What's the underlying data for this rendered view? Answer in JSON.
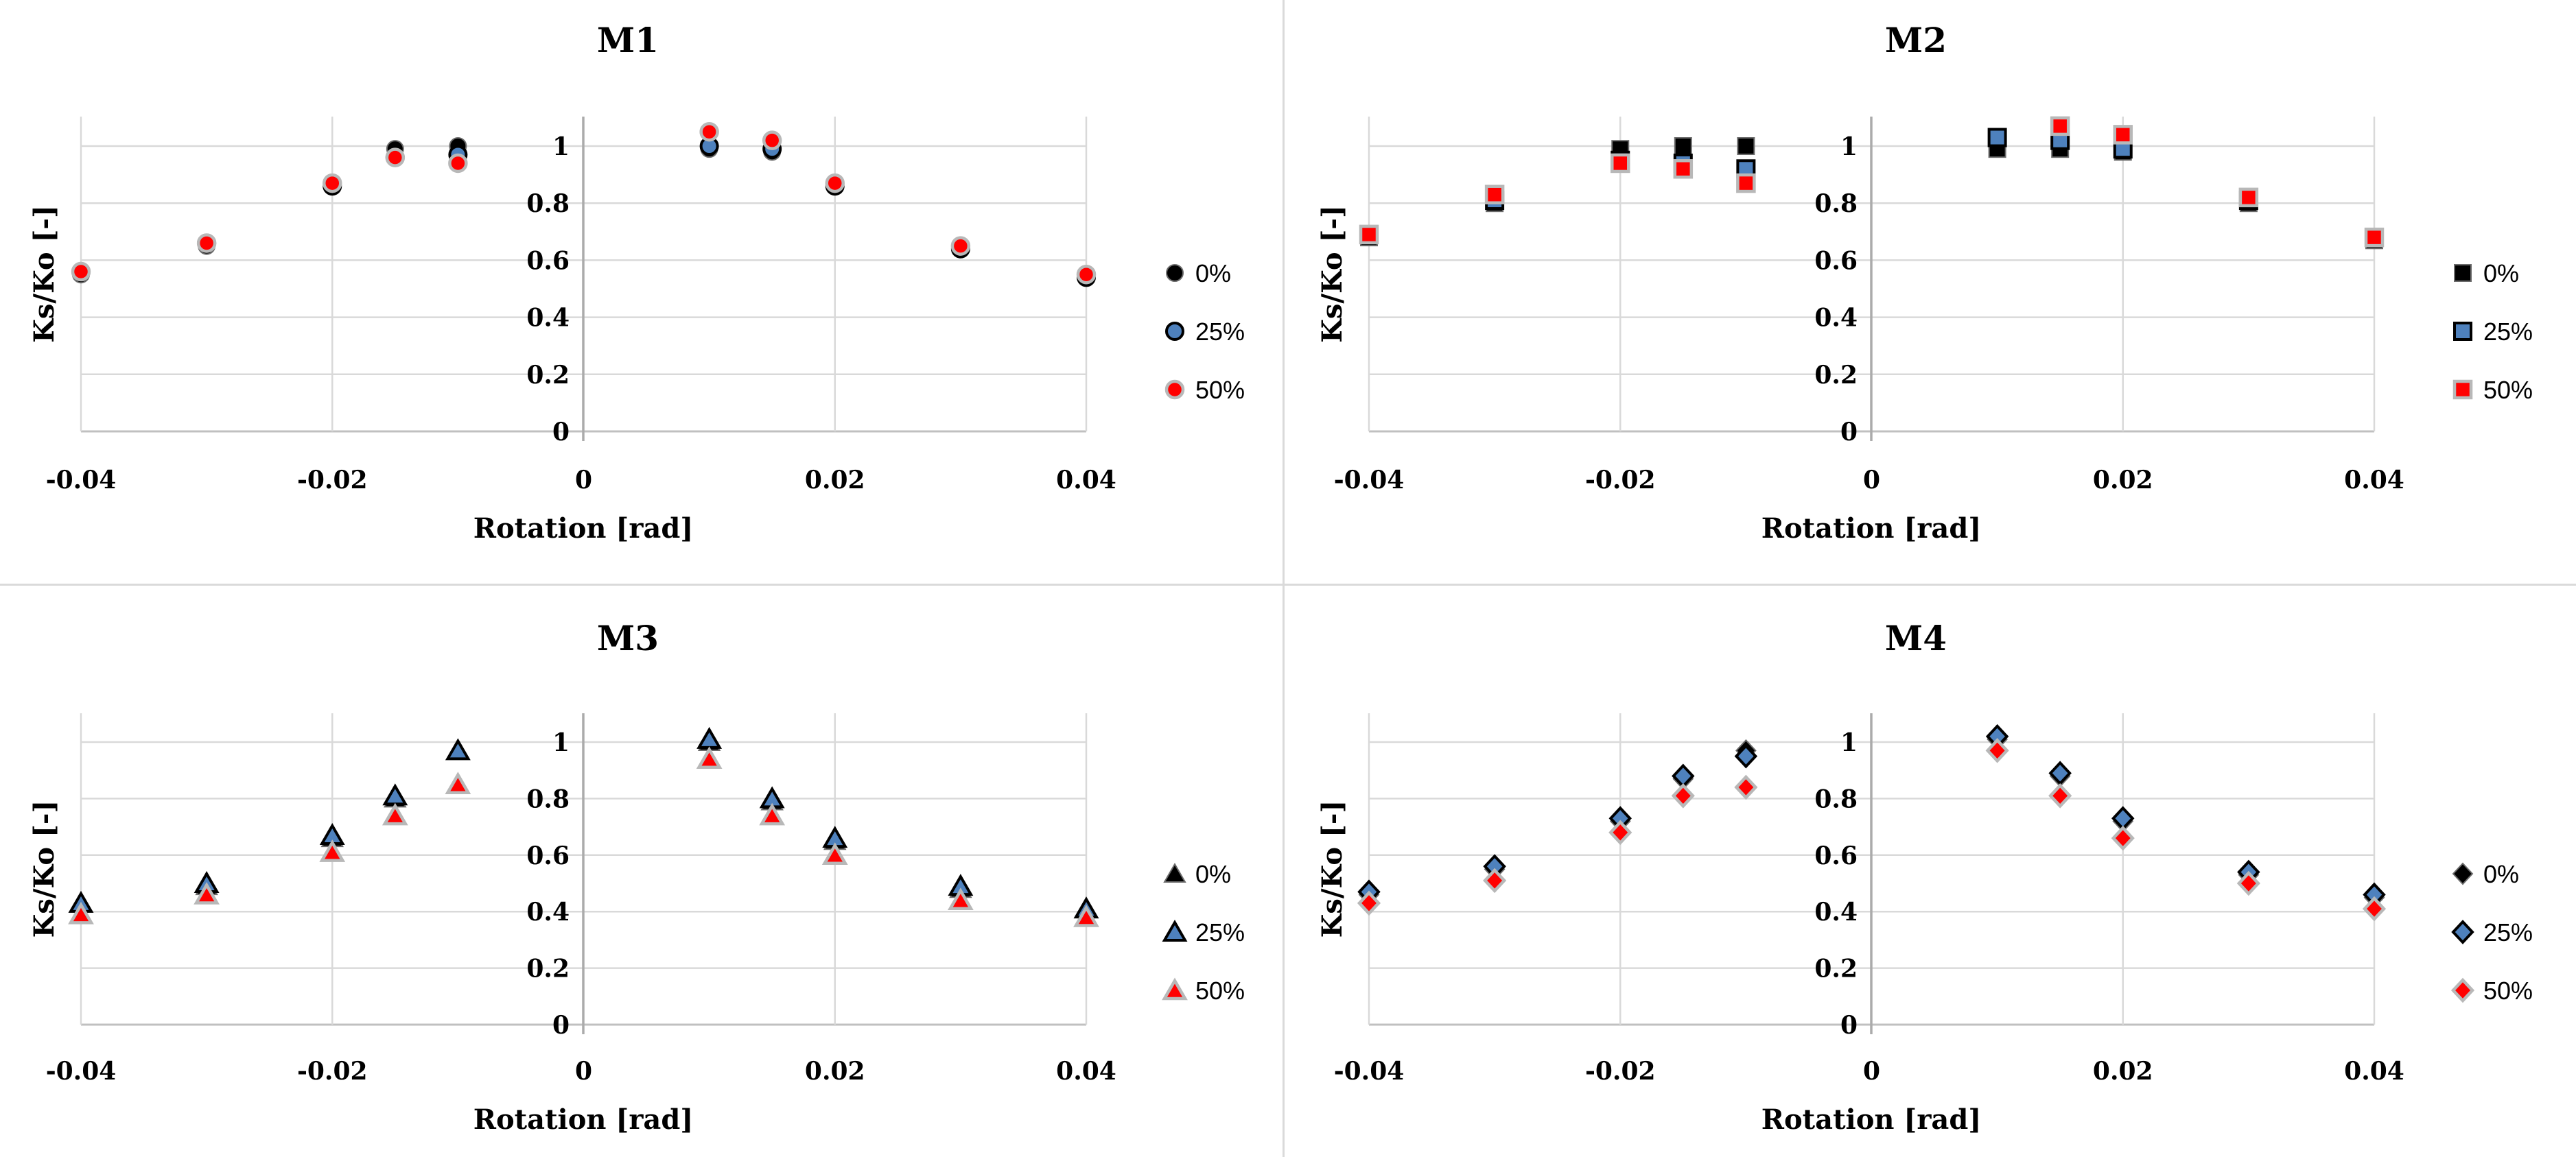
{
  "figure": {
    "background": "#ffffff",
    "grid_color": "#d9d9d9",
    "axis_color": "#ababab",
    "series_colors": {
      "pct0_fill": "#000000",
      "pct0_stroke": "#6b6b6b",
      "pct25_fill": "#4e81bd",
      "pct25_stroke": "#000000",
      "pct50_fill": "#ff0000",
      "pct50_stroke": "#b8b8b8"
    }
  },
  "chart_data": [
    {
      "type": "scatter",
      "title": "M1",
      "xlabel": "Rotation [rad]",
      "ylabel": "Ks/Ko [-]",
      "marker": "circle",
      "xlim": [
        -0.044,
        0.044
      ],
      "ylim": [
        0,
        1.1
      ],
      "grid": true,
      "legend_position": "right",
      "x_tick_labels": [
        "-0.04",
        "-0.02",
        "0",
        "0.02",
        "0.04"
      ],
      "x_tick_positions": [
        -0.04,
        -0.02,
        0,
        0.02,
        0.04
      ],
      "y_tick_labels": [
        "1",
        "0.8",
        "0.6",
        "0.4",
        "0.2",
        "0"
      ],
      "y_tick_positions": [
        1,
        0.8,
        0.6,
        0.4,
        0.2,
        0
      ],
      "series": [
        {
          "name": "0%",
          "fill": "#000000",
          "stroke": "#6b6b6b",
          "stroke_width": 2,
          "x": [
            -0.04,
            -0.03,
            -0.02,
            -0.015,
            -0.01,
            0.01,
            0.015,
            0.02,
            0.03,
            0.04
          ],
          "y": [
            0.55,
            0.65,
            0.86,
            0.99,
            1.0,
            0.99,
            0.98,
            0.86,
            0.64,
            0.54
          ]
        },
        {
          "name": "25%",
          "fill": "#4e81bd",
          "stroke": "#000000",
          "stroke_width": 4,
          "x": [
            -0.04,
            -0.03,
            -0.02,
            -0.015,
            -0.01,
            0.01,
            0.015,
            0.02,
            0.03,
            0.04
          ],
          "y": [
            0.56,
            0.66,
            0.86,
            0.96,
            0.97,
            1.0,
            0.99,
            0.86,
            0.64,
            0.54
          ]
        },
        {
          "name": "50%",
          "fill": "#ff0000",
          "stroke": "#b8b8b8",
          "stroke_width": 4.5,
          "x": [
            -0.04,
            -0.03,
            -0.02,
            -0.015,
            -0.01,
            0.01,
            0.015,
            0.02,
            0.03,
            0.04
          ],
          "y": [
            0.56,
            0.66,
            0.87,
            0.96,
            0.94,
            1.05,
            1.02,
            0.87,
            0.65,
            0.55
          ]
        }
      ]
    },
    {
      "type": "scatter",
      "title": "M2",
      "xlabel": "Rotation [rad]",
      "ylabel": "Ks/Ko [-]",
      "marker": "square",
      "xlim": [
        -0.044,
        0.044
      ],
      "ylim": [
        0,
        1.1
      ],
      "grid": true,
      "legend_position": "right",
      "x_tick_labels": [
        "-0.04",
        "-0.02",
        "0",
        "0.02",
        "0.04"
      ],
      "x_tick_positions": [
        -0.04,
        -0.02,
        0,
        0.02,
        0.04
      ],
      "y_tick_labels": [
        "1",
        "0.8",
        "0.6",
        "0.4",
        "0.2",
        "0"
      ],
      "y_tick_positions": [
        1,
        0.8,
        0.6,
        0.4,
        0.2,
        0
      ],
      "series": [
        {
          "name": "0%",
          "fill": "#000000",
          "stroke": "#6b6b6b",
          "stroke_width": 2,
          "x": [
            -0.04,
            -0.03,
            -0.02,
            -0.015,
            -0.01,
            0.01,
            0.015,
            0.02,
            0.03,
            0.04
          ],
          "y": [
            0.68,
            0.8,
            0.99,
            1.0,
            1.0,
            0.99,
            0.99,
            0.98,
            0.8,
            0.67
          ]
        },
        {
          "name": "25%",
          "fill": "#4e81bd",
          "stroke": "#000000",
          "stroke_width": 4,
          "x": [
            -0.04,
            -0.03,
            -0.02,
            -0.015,
            -0.01,
            0.01,
            0.015,
            0.02,
            0.03,
            0.04
          ],
          "y": [
            0.69,
            0.81,
            0.95,
            0.94,
            0.92,
            1.03,
            1.02,
            0.99,
            0.81,
            0.68
          ]
        },
        {
          "name": "50%",
          "fill": "#ff0000",
          "stroke": "#b8b8b8",
          "stroke_width": 4.5,
          "x": [
            -0.04,
            -0.03,
            -0.02,
            -0.015,
            -0.01,
            0.01,
            0.015,
            0.02,
            0.03,
            0.04
          ],
          "y": [
            0.69,
            0.83,
            0.94,
            0.92,
            0.87,
            null,
            1.07,
            1.04,
            0.82,
            0.68
          ]
        }
      ]
    },
    {
      "type": "scatter",
      "title": "M3",
      "xlabel": "Rotation [rad]",
      "ylabel": "Ks/Ko [-]",
      "marker": "triangle",
      "xlim": [
        -0.044,
        0.044
      ],
      "ylim": [
        0,
        1.1
      ],
      "grid": true,
      "legend_position": "right",
      "x_tick_labels": [
        "-0.04",
        "-0.02",
        "0",
        "0.02",
        "0.04"
      ],
      "x_tick_positions": [
        -0.04,
        -0.02,
        0,
        0.02,
        0.04
      ],
      "y_tick_labels": [
        "1",
        "0.8",
        "0.6",
        "0.4",
        "0.2",
        "0"
      ],
      "y_tick_positions": [
        1,
        0.8,
        0.6,
        0.4,
        0.2,
        0
      ],
      "series": [
        {
          "name": "0%",
          "fill": "#000000",
          "stroke": "#6b6b6b",
          "stroke_width": 2,
          "x": [
            -0.04,
            -0.03,
            -0.02,
            -0.015,
            -0.01,
            0.01,
            0.015,
            0.02,
            0.03,
            0.04
          ],
          "y": [
            0.43,
            0.49,
            0.66,
            0.8,
            0.97,
            1.0,
            0.79,
            0.65,
            0.48,
            0.41
          ]
        },
        {
          "name": "25%",
          "fill": "#4e81bd",
          "stroke": "#000000",
          "stroke_width": 4,
          "x": [
            -0.04,
            -0.03,
            -0.02,
            -0.015,
            -0.01,
            0.01,
            0.015,
            0.02,
            0.03,
            0.04
          ],
          "y": [
            0.43,
            0.5,
            0.67,
            0.81,
            0.97,
            1.01,
            0.8,
            0.66,
            0.49,
            0.41
          ]
        },
        {
          "name": "50%",
          "fill": "#ff0000",
          "stroke": "#b8b8b8",
          "stroke_width": 4.5,
          "x": [
            -0.04,
            -0.03,
            -0.02,
            -0.015,
            -0.01,
            0.01,
            0.015,
            0.02,
            0.03,
            0.04
          ],
          "y": [
            0.39,
            0.46,
            0.61,
            0.74,
            0.85,
            0.94,
            0.74,
            0.6,
            0.44,
            0.38
          ]
        }
      ]
    },
    {
      "type": "scatter",
      "title": "M4",
      "xlabel": "Rotation [rad]",
      "ylabel": "Ks/Ko [-]",
      "marker": "diamond",
      "xlim": [
        -0.044,
        0.044
      ],
      "ylim": [
        0,
        1.1
      ],
      "grid": true,
      "legend_position": "right",
      "x_tick_labels": [
        "-0.04",
        "-0.02",
        "0",
        "0.02",
        "0.04"
      ],
      "x_tick_positions": [
        -0.04,
        -0.02,
        0,
        0.02,
        0.04
      ],
      "y_tick_labels": [
        "1",
        "0.8",
        "0.6",
        "0.4",
        "0.2",
        "0"
      ],
      "y_tick_positions": [
        1,
        0.8,
        0.6,
        0.4,
        0.2,
        0
      ],
      "series": [
        {
          "name": "0%",
          "fill": "#000000",
          "stroke": "#6b6b6b",
          "stroke_width": 2,
          "x": [
            -0.04,
            -0.03,
            -0.02,
            -0.015,
            -0.01,
            0.01,
            0.015,
            0.02,
            0.03,
            0.04
          ],
          "y": [
            0.46,
            0.55,
            0.72,
            0.87,
            0.97,
            1.01,
            0.88,
            0.72,
            0.53,
            0.45
          ]
        },
        {
          "name": "25%",
          "fill": "#4e81bd",
          "stroke": "#000000",
          "stroke_width": 4,
          "x": [
            -0.04,
            -0.03,
            -0.02,
            -0.015,
            -0.01,
            0.01,
            0.015,
            0.02,
            0.03,
            0.04
          ],
          "y": [
            0.47,
            0.56,
            0.73,
            0.88,
            0.95,
            1.02,
            0.89,
            0.73,
            0.54,
            0.46
          ]
        },
        {
          "name": "50%",
          "fill": "#ff0000",
          "stroke": "#b8b8b8",
          "stroke_width": 4.5,
          "x": [
            -0.04,
            -0.03,
            -0.02,
            -0.015,
            -0.01,
            0.01,
            0.015,
            0.02,
            0.03,
            0.04
          ],
          "y": [
            0.43,
            0.51,
            0.68,
            0.81,
            0.84,
            0.97,
            0.81,
            0.66,
            0.5,
            0.41
          ]
        }
      ]
    }
  ]
}
